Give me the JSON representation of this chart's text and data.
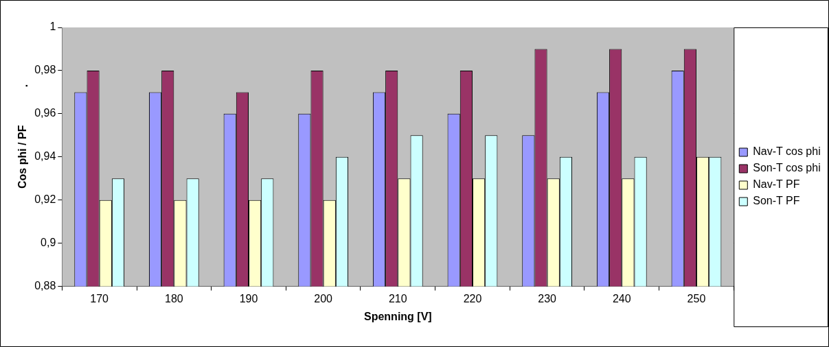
{
  "chart_data": {
    "type": "bar",
    "xlabel": "Spenning [V]",
    "ylabel": "Cos phi / PF",
    "annotations": [
      "."
    ],
    "categories": [
      "170",
      "180",
      "190",
      "200",
      "210",
      "220",
      "230",
      "240",
      "250"
    ],
    "series": [
      {
        "name": "Nav-T cos phi",
        "color": "#9999ff",
        "values": [
          0.97,
          0.97,
          0.96,
          0.96,
          0.97,
          0.96,
          0.95,
          0.97,
          0.98
        ]
      },
      {
        "name": "Son-T cos phi",
        "color": "#993366",
        "values": [
          0.98,
          0.98,
          0.97,
          0.98,
          0.98,
          0.98,
          0.99,
          0.99,
          0.99
        ]
      },
      {
        "name": "Nav-T PF",
        "color": "#ffffcc",
        "values": [
          0.92,
          0.92,
          0.92,
          0.92,
          0.93,
          0.93,
          0.93,
          0.93,
          0.94
        ]
      },
      {
        "name": "Son-T PF",
        "color": "#ccffff",
        "values": [
          0.93,
          0.93,
          0.93,
          0.94,
          0.95,
          0.95,
          0.94,
          0.94,
          0.94
        ]
      }
    ],
    "ylim": [
      0.88,
      1
    ],
    "yticks": [
      {
        "value": 0.88,
        "label": "0,88"
      },
      {
        "value": 0.9,
        "label": "0,9"
      },
      {
        "value": 0.92,
        "label": "0,92"
      },
      {
        "value": 0.94,
        "label": "0,94"
      },
      {
        "value": 0.96,
        "label": "0,96"
      },
      {
        "value": 0.98,
        "label": "0,98"
      },
      {
        "value": 1,
        "label": "1"
      }
    ],
    "grid": "y",
    "legend": "right"
  }
}
